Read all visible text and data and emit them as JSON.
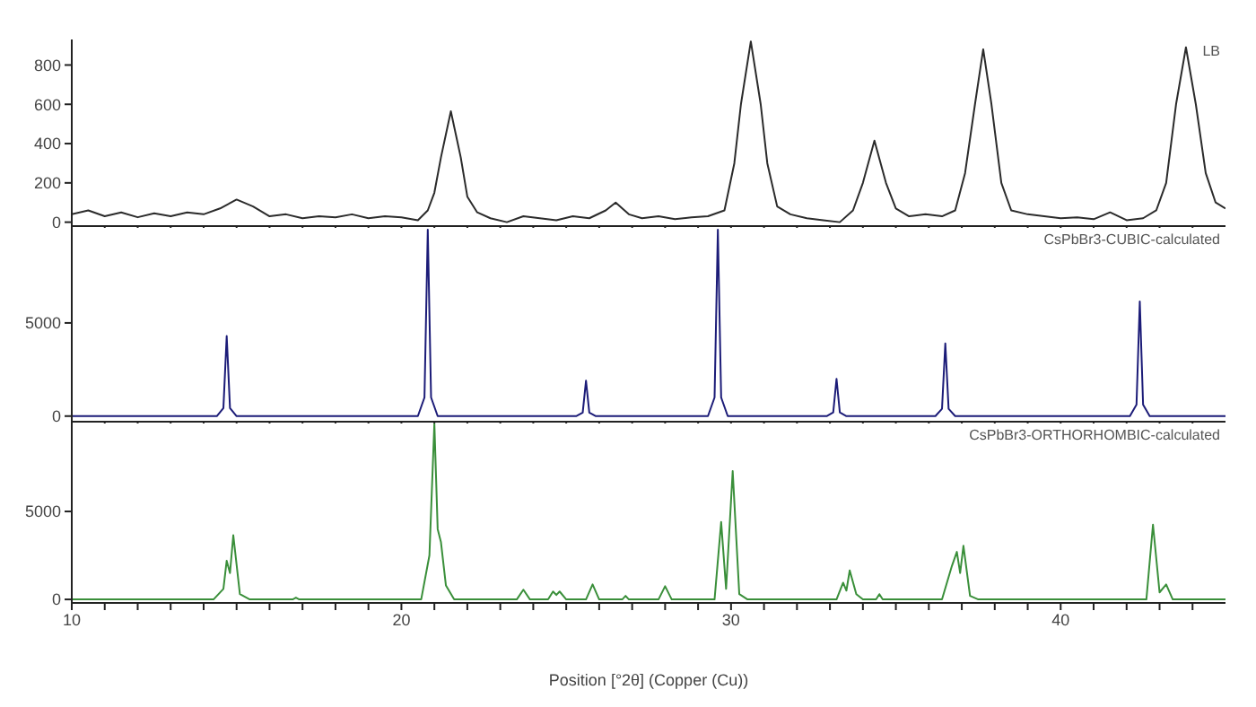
{
  "chart_data": [
    {
      "type": "line",
      "tick_labels": "y",
      "grid": false,
      "legend": false,
      "marker": "none",
      "line_style": "solid",
      "xlim": [
        10,
        45
      ],
      "xticks": [
        10,
        {
          "value": 11,
          "label": null
        },
        {
          "value": 12,
          "label": null
        },
        {
          "value": 13,
          "label": null
        },
        {
          "value": 14,
          "label": null
        },
        {
          "value": 15,
          "label": null
        },
        {
          "value": 16,
          "label": null
        },
        {
          "value": 17,
          "label": null
        },
        {
          "value": 18,
          "label": null
        },
        {
          "value": 19,
          "label": null
        },
        20,
        {
          "value": 21,
          "label": null
        },
        {
          "value": 22,
          "label": null
        },
        {
          "value": 23,
          "label": null
        },
        {
          "value": 24,
          "label": null
        },
        {
          "value": 25,
          "label": null
        },
        {
          "value": 26,
          "label": null
        },
        {
          "value": 27,
          "label": null
        },
        {
          "value": 28,
          "label": null
        },
        {
          "value": 29,
          "label": null
        },
        30,
        {
          "value": 31,
          "label": null
        },
        {
          "value": 32,
          "label": null
        },
        {
          "value": 33,
          "label": null
        },
        {
          "value": 34,
          "label": null
        },
        {
          "value": 35,
          "label": null
        },
        {
          "value": 36,
          "label": null
        },
        {
          "value": 37,
          "label": null
        },
        {
          "value": 38,
          "label": null
        },
        {
          "value": 39,
          "label": null
        },
        40,
        {
          "value": 41,
          "label": null
        },
        {
          "value": 42,
          "label": null
        },
        {
          "value": 43,
          "label": null
        },
        {
          "value": 44,
          "label": null
        }
      ],
      "ylim": [
        -20,
        930
      ],
      "yticks": [
        0,
        200,
        400,
        600,
        800
      ],
      "series": [
        {
          "name": "LB",
          "color": "#2b2b2b",
          "x": [
            10.0,
            10.5,
            11.0,
            11.5,
            12.0,
            12.5,
            13.0,
            13.5,
            14.0,
            14.5,
            15.0,
            15.5,
            16.0,
            16.5,
            17.0,
            17.5,
            18.0,
            18.5,
            19.0,
            19.5,
            20.0,
            20.5,
            20.8,
            21.0,
            21.2,
            21.5,
            21.8,
            22.0,
            22.3,
            22.7,
            23.2,
            23.7,
            24.2,
            24.7,
            25.2,
            25.7,
            26.2,
            26.5,
            26.9,
            27.3,
            27.8,
            28.3,
            28.8,
            29.3,
            29.8,
            30.1,
            30.3,
            30.6,
            30.9,
            31.1,
            31.4,
            31.8,
            32.3,
            32.8,
            33.3,
            33.7,
            34.0,
            34.35,
            34.7,
            35.0,
            35.4,
            35.9,
            36.4,
            36.8,
            37.1,
            37.4,
            37.65,
            37.9,
            38.2,
            38.5,
            39.0,
            39.5,
            40.0,
            40.5,
            41.0,
            41.5,
            42.0,
            42.5,
            42.9,
            43.2,
            43.5,
            43.8,
            44.1,
            44.4,
            44.7,
            45.0
          ],
          "values": [
            40,
            60,
            30,
            50,
            25,
            45,
            30,
            50,
            40,
            70,
            115,
            80,
            30,
            40,
            20,
            30,
            25,
            40,
            20,
            30,
            25,
            10,
            60,
            150,
            330,
            565,
            330,
            130,
            50,
            20,
            0,
            30,
            20,
            10,
            30,
            20,
            60,
            100,
            40,
            20,
            30,
            15,
            25,
            30,
            60,
            300,
            600,
            920,
            600,
            300,
            80,
            40,
            20,
            10,
            0,
            60,
            200,
            415,
            200,
            70,
            30,
            40,
            30,
            60,
            250,
            600,
            880,
            600,
            200,
            60,
            40,
            30,
            20,
            25,
            15,
            50,
            10,
            20,
            60,
            200,
            600,
            890,
            600,
            250,
            100,
            70
          ]
        }
      ]
    },
    {
      "type": "line",
      "tick_labels": "y",
      "grid": false,
      "legend": false,
      "marker": "none",
      "line_style": "solid",
      "xlim": [
        10,
        45
      ],
      "xticks": [
        10,
        {
          "value": 11,
          "label": null
        },
        {
          "value": 12,
          "label": null
        },
        {
          "value": 13,
          "label": null
        },
        {
          "value": 14,
          "label": null
        },
        {
          "value": 15,
          "label": null
        },
        {
          "value": 16,
          "label": null
        },
        {
          "value": 17,
          "label": null
        },
        {
          "value": 18,
          "label": null
        },
        {
          "value": 19,
          "label": null
        },
        20,
        {
          "value": 21,
          "label": null
        },
        {
          "value": 22,
          "label": null
        },
        {
          "value": 23,
          "label": null
        },
        {
          "value": 24,
          "label": null
        },
        {
          "value": 25,
          "label": null
        },
        {
          "value": 26,
          "label": null
        },
        {
          "value": 27,
          "label": null
        },
        {
          "value": 28,
          "label": null
        },
        {
          "value": 29,
          "label": null
        },
        30,
        {
          "value": 31,
          "label": null
        },
        {
          "value": 32,
          "label": null
        },
        {
          "value": 33,
          "label": null
        },
        {
          "value": 34,
          "label": null
        },
        {
          "value": 35,
          "label": null
        },
        {
          "value": 36,
          "label": null
        },
        {
          "value": 37,
          "label": null
        },
        {
          "value": 38,
          "label": null
        },
        {
          "value": 39,
          "label": null
        },
        40,
        {
          "value": 41,
          "label": null
        },
        {
          "value": 42,
          "label": null
        },
        {
          "value": 43,
          "label": null
        },
        {
          "value": 44,
          "label": null
        }
      ],
      "ylim": [
        -300,
        10100
      ],
      "yticks": [
        0,
        5000
      ],
      "series": [
        {
          "name": "CsPbBr3-CUBIC-calculated",
          "color": "#1c1c78",
          "x": [
            10,
            14.4,
            14.6,
            14.7,
            14.8,
            15.0,
            20.5,
            20.7,
            20.8,
            20.9,
            21.1,
            25.3,
            25.5,
            25.6,
            25.7,
            25.9,
            29.3,
            29.5,
            29.6,
            29.7,
            29.9,
            32.9,
            33.1,
            33.2,
            33.3,
            33.5,
            36.2,
            36.4,
            36.5,
            36.6,
            36.8,
            42.1,
            42.3,
            42.4,
            42.5,
            42.7,
            45
          ],
          "values": [
            0,
            0,
            430,
            4300,
            430,
            0,
            0,
            1000,
            10000,
            1000,
            0,
            0,
            190,
            1900,
            190,
            0,
            0,
            1000,
            10000,
            1000,
            0,
            0,
            200,
            2000,
            200,
            0,
            0,
            390,
            3900,
            390,
            0,
            0,
            615,
            6150,
            615,
            0,
            0
          ]
        }
      ]
    },
    {
      "type": "line",
      "xlabel": "Position [°2θ] (Copper (Cu))",
      "grid": false,
      "legend": false,
      "marker": "none",
      "line_style": "solid",
      "xlim": [
        10,
        45
      ],
      "xticks": [
        10,
        {
          "value": 11,
          "label": null
        },
        {
          "value": 12,
          "label": null
        },
        {
          "value": 13,
          "label": null
        },
        {
          "value": 14,
          "label": null
        },
        {
          "value": 15,
          "label": null
        },
        {
          "value": 16,
          "label": null
        },
        {
          "value": 17,
          "label": null
        },
        {
          "value": 18,
          "label": null
        },
        {
          "value": 19,
          "label": null
        },
        20,
        {
          "value": 21,
          "label": null
        },
        {
          "value": 22,
          "label": null
        },
        {
          "value": 23,
          "label": null
        },
        {
          "value": 24,
          "label": null
        },
        {
          "value": 25,
          "label": null
        },
        {
          "value": 26,
          "label": null
        },
        {
          "value": 27,
          "label": null
        },
        {
          "value": 28,
          "label": null
        },
        {
          "value": 29,
          "label": null
        },
        30,
        {
          "value": 31,
          "label": null
        },
        {
          "value": 32,
          "label": null
        },
        {
          "value": 33,
          "label": null
        },
        {
          "value": 34,
          "label": null
        },
        {
          "value": 35,
          "label": null
        },
        {
          "value": 36,
          "label": null
        },
        {
          "value": 37,
          "label": null
        },
        {
          "value": 38,
          "label": null
        },
        {
          "value": 39,
          "label": null
        },
        40,
        {
          "value": 41,
          "label": null
        },
        {
          "value": 42,
          "label": null
        },
        {
          "value": 43,
          "label": null
        },
        {
          "value": 44,
          "label": null
        }
      ],
      "ylim": [
        -200,
        10000
      ],
      "yticks": [
        0,
        5000
      ],
      "series": [
        {
          "name": "CsPbBr3-ORTHORHOMBIC-calculated",
          "color": "#3a8f3a",
          "x": [
            10,
            14.3,
            14.6,
            14.7,
            14.8,
            14.9,
            15.1,
            15.4,
            16.7,
            16.8,
            16.9,
            20.6,
            20.85,
            21.0,
            21.1,
            21.2,
            21.35,
            21.6,
            23.5,
            23.7,
            23.9,
            24.45,
            24.6,
            24.7,
            24.8,
            25.0,
            25.6,
            25.8,
            26.0,
            26.7,
            26.8,
            26.9,
            27.8,
            28.0,
            28.2,
            29.5,
            29.7,
            29.85,
            30.05,
            30.25,
            30.5,
            33.2,
            33.4,
            33.5,
            33.6,
            33.8,
            34.0,
            34.4,
            34.5,
            34.6,
            36.4,
            36.7,
            36.85,
            36.95,
            37.05,
            37.25,
            37.5,
            42.6,
            42.8,
            43.0,
            43.2,
            43.4,
            45
          ],
          "values": [
            0,
            0,
            600,
            2200,
            1500,
            3650,
            300,
            0,
            0,
            100,
            0,
            0,
            2500,
            10000,
            4000,
            3250,
            800,
            0,
            0,
            550,
            0,
            0,
            450,
            250,
            450,
            0,
            0,
            850,
            0,
            0,
            200,
            0,
            0,
            750,
            0,
            0,
            4400,
            600,
            7300,
            300,
            0,
            0,
            950,
            500,
            1650,
            300,
            0,
            0,
            300,
            0,
            0,
            1900,
            2700,
            1500,
            3050,
            200,
            0,
            0,
            4250,
            400,
            850,
            0,
            0
          ]
        }
      ]
    }
  ]
}
